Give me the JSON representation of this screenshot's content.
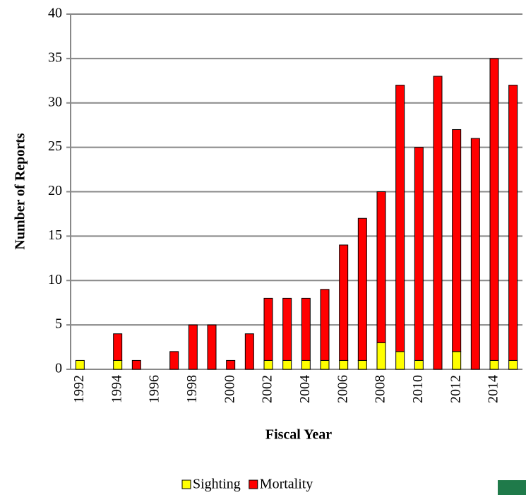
{
  "chart_data": {
    "type": "bar",
    "stacked": true,
    "x_label": "Fiscal Year",
    "y_label": "Number of Reports",
    "categories": [
      "1992",
      null,
      "1994",
      null,
      "1996",
      null,
      "1998",
      null,
      "2000",
      null,
      "2002",
      null,
      "2004",
      null,
      "2006",
      null,
      "2008",
      null,
      "2010",
      null,
      "2012",
      null,
      "2014",
      null
    ],
    "series": [
      {
        "name": "Sighting",
        "color": "#ffff00",
        "values": [
          1,
          0,
          1,
          0,
          0,
          0,
          0,
          0,
          0,
          0,
          1,
          1,
          1,
          1,
          1,
          1,
          3,
          2,
          1,
          0,
          2,
          0,
          1,
          1
        ]
      },
      {
        "name": "Mortality",
        "color": "#ff0000",
        "values": [
          0,
          0,
          3,
          1,
          0,
          2,
          5,
          5,
          1,
          4,
          7,
          7,
          7,
          8,
          13,
          16,
          17,
          30,
          24,
          33,
          25,
          26,
          34,
          31
        ]
      }
    ],
    "ylim": [
      0,
      40
    ],
    "yticks": [
      0,
      5,
      10,
      15,
      20,
      25,
      30,
      35,
      40
    ],
    "grid": true,
    "legend": "bottom"
  }
}
